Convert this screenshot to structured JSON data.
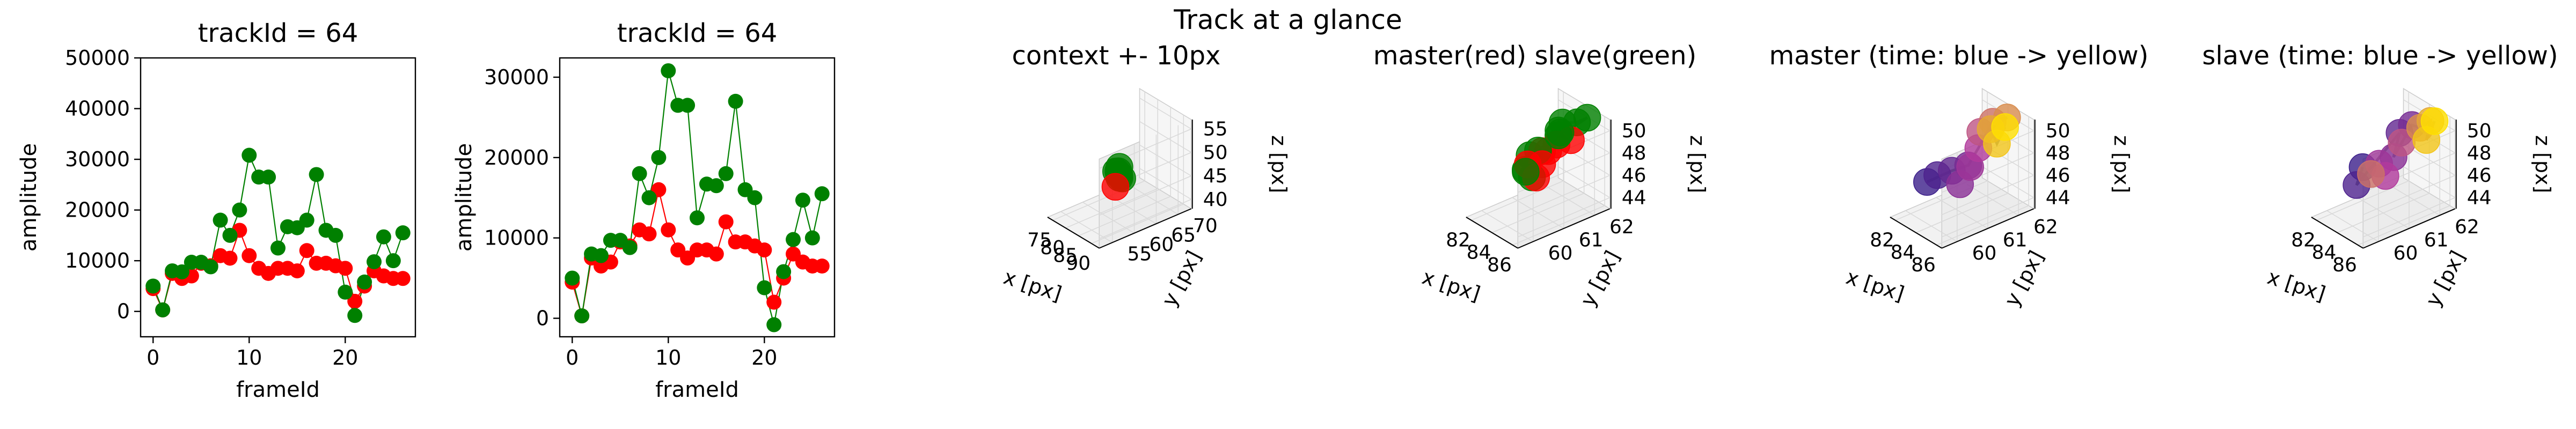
{
  "figure": {
    "title": "Track at a glance"
  },
  "colors": {
    "master": "#ff0000",
    "slave": "#008000",
    "path": "#808080",
    "pane": "#f2f2f2",
    "grid": "#d9d9d9",
    "time_start": "#3b1e8a",
    "time_mid": "#b23a9c",
    "time_end": "#ffe000"
  },
  "chart_data": [
    {
      "type": "line",
      "title": "trackId = 64",
      "xlabel": "frameId",
      "ylabel": "amplitude",
      "xlim": [
        -1.3,
        27.3
      ],
      "ylim": [
        -5000,
        50000
      ],
      "xticks": [
        "0",
        "10",
        "20"
      ],
      "yticks": [
        "0",
        "10000",
        "20000",
        "30000",
        "40000",
        "50000"
      ],
      "x": [
        0,
        1,
        2,
        3,
        4,
        5,
        6,
        7,
        8,
        9,
        10,
        11,
        12,
        13,
        14,
        15,
        16,
        17,
        18,
        19,
        20,
        21,
        22,
        23,
        24,
        25,
        26
      ],
      "series": [
        {
          "role": "master",
          "values": [
            4500,
            300,
            7500,
            6500,
            7000,
            9500,
            9000,
            11000,
            10500,
            16000,
            11000,
            8500,
            7500,
            8500,
            8500,
            8000,
            12000,
            9500,
            9500,
            9000,
            8500,
            2000,
            5000,
            8000,
            7000,
            6500,
            6500
          ]
        },
        {
          "role": "slave",
          "values": [
            5000,
            300,
            8000,
            7800,
            9700,
            9700,
            8800,
            18000,
            15000,
            20000,
            30800,
            26500,
            26500,
            12500,
            16700,
            16500,
            18000,
            27000,
            16000,
            15000,
            3800,
            -800,
            5800,
            9800,
            14700,
            10000,
            15500
          ]
        }
      ]
    },
    {
      "type": "line",
      "title": "trackId = 64",
      "xlabel": "frameId",
      "ylabel": "amplitude",
      "xlim": [
        -1.3,
        27.3
      ],
      "ylim": [
        -2300,
        32400
      ],
      "xticks": [
        "0",
        "10",
        "20"
      ],
      "yticks": [
        "0",
        "10000",
        "20000",
        "30000"
      ],
      "x": [
        0,
        1,
        2,
        3,
        4,
        5,
        6,
        7,
        8,
        9,
        10,
        11,
        12,
        13,
        14,
        15,
        16,
        17,
        18,
        19,
        20,
        21,
        22,
        23,
        24,
        25,
        26
      ],
      "series": [
        {
          "role": "master",
          "values": [
            4500,
            300,
            7500,
            6500,
            7000,
            9500,
            9000,
            11000,
            10500,
            16000,
            11000,
            8500,
            7500,
            8500,
            8500,
            8000,
            12000,
            9500,
            9500,
            9000,
            8500,
            2000,
            5000,
            8000,
            7000,
            6500,
            6500
          ]
        },
        {
          "role": "slave",
          "values": [
            5000,
            300,
            8000,
            7800,
            9700,
            9700,
            8800,
            18000,
            15000,
            20000,
            30800,
            26500,
            26500,
            12500,
            16700,
            16500,
            18000,
            27000,
            16000,
            15000,
            3800,
            -800,
            5800,
            9800,
            14700,
            10000,
            15500
          ]
        }
      ]
    },
    {
      "type": "scatter3d",
      "title": "context +- 10px",
      "xlabel": "x [px]",
      "ylabel": "y [px]",
      "zlabel": "z [px]",
      "xlim": [
        73,
        93
      ],
      "ylim": [
        52,
        73
      ],
      "zlim": [
        38,
        57
      ],
      "xticks": [
        75,
        80,
        85,
        90
      ],
      "yticks": [
        55,
        60,
        65,
        70
      ],
      "zticks": [
        40,
        45,
        50,
        55
      ],
      "coloring": "role",
      "points": [
        {
          "role": "slave",
          "x": 83.0,
          "y": 62.5,
          "z": 45.5
        },
        {
          "role": "slave",
          "x": 83.8,
          "y": 62.0,
          "z": 46.5
        },
        {
          "role": "slave",
          "x": 84.4,
          "y": 61.6,
          "z": 47.0
        },
        {
          "role": "slave",
          "x": 84.8,
          "y": 61.2,
          "z": 48.0
        },
        {
          "role": "slave",
          "x": 84.2,
          "y": 61.8,
          "z": 48.5
        },
        {
          "role": "slave",
          "x": 83.6,
          "y": 61.4,
          "z": 47.5
        },
        {
          "role": "slave",
          "x": 84.6,
          "y": 62.2,
          "z": 46.0
        },
        {
          "role": "master",
          "x": 84.0,
          "y": 61.0,
          "z": 44.5
        }
      ],
      "path": [
        [
          83.0,
          62.5,
          45.5
        ],
        [
          84.4,
          61.6,
          47.0
        ],
        [
          84.2,
          61.8,
          48.5
        ],
        [
          84.8,
          61.2,
          48.0
        ],
        [
          83.6,
          61.4,
          47.5
        ],
        [
          84.6,
          62.2,
          46.0
        ],
        [
          84.0,
          61.0,
          44.5
        ]
      ]
    },
    {
      "type": "scatter3d",
      "title": "master(red) slave(green)",
      "xlabel": "x [px]",
      "ylabel": "y [px]",
      "zlabel": "z [px]",
      "xlim": [
        81.5,
        86.5
      ],
      "ylim": [
        59.5,
        62.5
      ],
      "zlim": [
        43,
        51
      ],
      "xticks": [
        82,
        84,
        86
      ],
      "yticks": [
        60,
        61,
        62
      ],
      "zticks": [
        44,
        46,
        48,
        50
      ],
      "coloring": "role",
      "points": [
        {
          "role": "slave",
          "x": 82.0,
          "y": 61.4,
          "z": 46.6
        },
        {
          "role": "slave",
          "x": 82.8,
          "y": 61.0,
          "z": 46.2
        },
        {
          "role": "master",
          "x": 83.2,
          "y": 61.6,
          "z": 47.4
        },
        {
          "role": "master",
          "x": 83.8,
          "y": 61.2,
          "z": 48.2
        },
        {
          "role": "slave",
          "x": 83.4,
          "y": 62.0,
          "z": 49.6
        },
        {
          "role": "slave",
          "x": 84.2,
          "y": 61.6,
          "z": 49.8
        },
        {
          "role": "master",
          "x": 84.6,
          "y": 61.4,
          "z": 49.0
        },
        {
          "role": "slave",
          "x": 84.8,
          "y": 62.0,
          "z": 50.4
        },
        {
          "role": "slave",
          "x": 85.2,
          "y": 62.2,
          "z": 50.8
        },
        {
          "role": "master",
          "x": 85.4,
          "y": 61.6,
          "z": 49.6
        },
        {
          "role": "slave",
          "x": 84.0,
          "y": 61.0,
          "z": 48.6
        },
        {
          "role": "slave",
          "x": 83.6,
          "y": 61.8,
          "z": 48.8
        },
        {
          "role": "master",
          "x": 84.4,
          "y": 61.0,
          "z": 47.6
        },
        {
          "role": "slave",
          "x": 84.6,
          "y": 60.6,
          "z": 47.0
        },
        {
          "role": "master",
          "x": 85.0,
          "y": 60.6,
          "z": 47.2
        },
        {
          "role": "master",
          "x": 83.0,
          "y": 61.0,
          "z": 46.8
        },
        {
          "role": "slave",
          "x": 83.4,
          "y": 60.8,
          "z": 46.6
        },
        {
          "role": "slave",
          "x": 83.2,
          "y": 62.0,
          "z": 48.6
        }
      ],
      "path": [
        [
          82.0,
          61.4,
          46.6
        ],
        [
          83.2,
          61.6,
          47.4
        ],
        [
          83.4,
          62.0,
          49.6
        ],
        [
          84.8,
          62.0,
          50.4
        ],
        [
          85.2,
          62.2,
          50.8
        ],
        [
          84.0,
          61.0,
          48.6
        ],
        [
          84.6,
          60.6,
          47.0
        ],
        [
          83.4,
          60.8,
          46.6
        ],
        [
          84.2,
          61.6,
          49.8
        ],
        [
          85.4,
          61.6,
          49.6
        ],
        [
          83.6,
          61.8,
          48.8
        ],
        [
          84.4,
          61.0,
          47.6
        ],
        [
          83.0,
          61.0,
          46.8
        ],
        [
          84.6,
          61.4,
          49.0
        ]
      ]
    },
    {
      "type": "scatter3d",
      "title": "master (time: blue -> yellow)",
      "xlabel": "x [px]",
      "ylabel": "y [px]",
      "zlabel": "z [px]",
      "xlim": [
        81.5,
        86.5
      ],
      "ylim": [
        59.5,
        62.5
      ],
      "zlim": [
        43,
        51
      ],
      "xticks": [
        82,
        84,
        86
      ],
      "yticks": [
        60,
        61,
        62
      ],
      "zticks": [
        44,
        46,
        48,
        50
      ],
      "coloring": "time",
      "points": [
        {
          "t": 0.0,
          "x": 82.4,
          "y": 60.4,
          "z": 45.6
        },
        {
          "t": 0.08,
          "x": 82.8,
          "y": 60.6,
          "z": 46.2
        },
        {
          "t": 0.16,
          "x": 83.6,
          "y": 60.8,
          "z": 46.8
        },
        {
          "t": 0.25,
          "x": 84.6,
          "y": 61.0,
          "z": 47.6
        },
        {
          "t": 0.33,
          "x": 85.0,
          "y": 60.6,
          "z": 46.6
        },
        {
          "t": 0.42,
          "x": 84.2,
          "y": 61.2,
          "z": 47.0
        },
        {
          "t": 0.5,
          "x": 83.8,
          "y": 61.6,
          "z": 48.0
        },
        {
          "t": 0.58,
          "x": 83.4,
          "y": 61.8,
          "z": 49.0
        },
        {
          "t": 0.67,
          "x": 84.0,
          "y": 62.0,
          "z": 50.0
        },
        {
          "t": 0.75,
          "x": 84.8,
          "y": 62.2,
          "z": 50.6
        },
        {
          "t": 0.83,
          "x": 84.4,
          "y": 61.8,
          "z": 49.8
        },
        {
          "t": 0.92,
          "x": 85.6,
          "y": 61.6,
          "z": 49.4
        },
        {
          "t": 1.0,
          "x": 85.2,
          "y": 62.0,
          "z": 50.2
        }
      ],
      "path": [
        [
          82.4,
          60.4,
          45.6
        ],
        [
          83.6,
          60.8,
          46.8
        ],
        [
          84.6,
          61.0,
          47.6
        ],
        [
          83.8,
          61.6,
          48.0
        ],
        [
          84.0,
          62.0,
          50.0
        ],
        [
          84.8,
          62.2,
          50.6
        ],
        [
          84.4,
          61.8,
          49.8
        ],
        [
          85.6,
          61.6,
          49.4
        ],
        [
          85.2,
          62.0,
          50.2
        ]
      ]
    },
    {
      "type": "scatter3d",
      "title": "slave (time: blue -> yellow)",
      "xlabel": "x [px]",
      "ylabel": "y [px]",
      "zlabel": "z [px]",
      "xlim": [
        81.5,
        86.5
      ],
      "ylim": [
        59.5,
        62.5
      ],
      "zlim": [
        43,
        51
      ],
      "xticks": [
        82,
        84,
        86
      ],
      "yticks": [
        60,
        61,
        62
      ],
      "zticks": [
        44,
        46,
        48,
        50
      ],
      "coloring": "time",
      "points": [
        {
          "t": 0.0,
          "x": 82.0,
          "y": 61.0,
          "z": 46.0
        },
        {
          "t": 0.08,
          "x": 82.6,
          "y": 60.6,
          "z": 45.2
        },
        {
          "t": 0.16,
          "x": 83.2,
          "y": 61.8,
          "z": 48.8
        },
        {
          "t": 0.25,
          "x": 83.8,
          "y": 62.0,
          "z": 49.6
        },
        {
          "t": 0.33,
          "x": 84.4,
          "y": 61.2,
          "z": 48.0
        },
        {
          "t": 0.42,
          "x": 83.6,
          "y": 61.0,
          "z": 47.2
        },
        {
          "t": 0.5,
          "x": 84.8,
          "y": 60.8,
          "z": 47.0
        },
        {
          "t": 0.58,
          "x": 84.0,
          "y": 61.6,
          "z": 48.6
        },
        {
          "t": 0.67,
          "x": 83.4,
          "y": 60.8,
          "z": 46.4
        },
        {
          "t": 0.75,
          "x": 84.6,
          "y": 62.0,
          "z": 49.8
        },
        {
          "t": 0.83,
          "x": 85.0,
          "y": 62.2,
          "z": 50.4
        },
        {
          "t": 0.92,
          "x": 85.8,
          "y": 61.8,
          "z": 49.6
        },
        {
          "t": 1.0,
          "x": 85.4,
          "y": 62.2,
          "z": 50.6
        }
      ],
      "path": [
        [
          82.0,
          61.0,
          46.0
        ],
        [
          82.6,
          60.6,
          45.2
        ],
        [
          83.2,
          61.8,
          48.8
        ],
        [
          84.4,
          61.2,
          48.0
        ],
        [
          83.8,
          62.0,
          49.6
        ],
        [
          84.6,
          62.0,
          49.8
        ],
        [
          85.0,
          62.2,
          50.4
        ],
        [
          85.8,
          61.8,
          49.6
        ],
        [
          85.4,
          62.2,
          50.6
        ]
      ]
    }
  ]
}
